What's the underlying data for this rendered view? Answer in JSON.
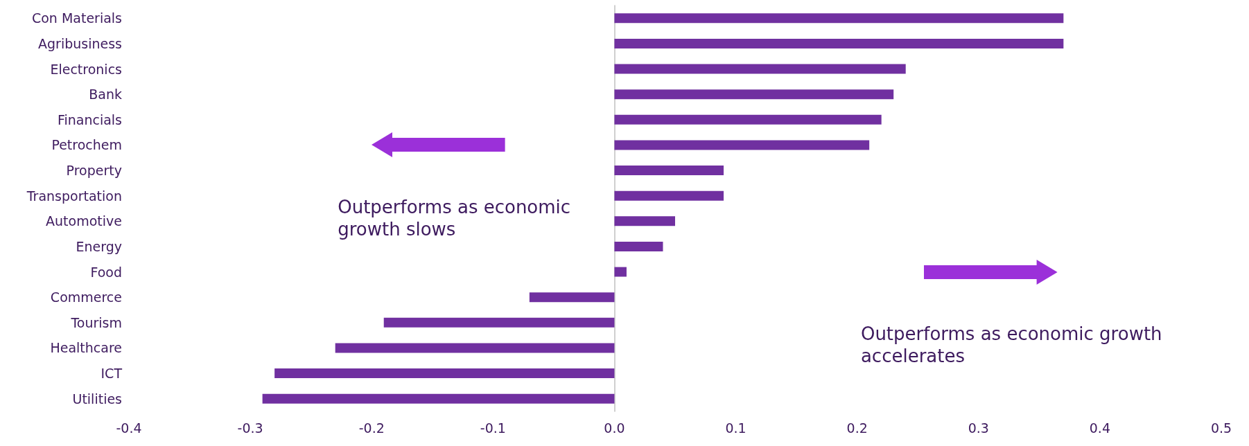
{
  "chart_data": {
    "type": "bar",
    "orientation": "horizontal",
    "categories": [
      "Con Materials",
      "Agribusiness",
      "Electronics",
      "Bank",
      "Financials",
      "Petrochem",
      "Property",
      "Transportation",
      "Automotive",
      "Energy",
      "Food",
      "Commerce",
      "Tourism",
      "Healthcare",
      "ICT",
      "Utilities"
    ],
    "values": [
      0.37,
      0.37,
      0.24,
      0.23,
      0.22,
      0.21,
      0.09,
      0.09,
      0.05,
      0.04,
      0.01,
      -0.07,
      -0.19,
      -0.23,
      -0.28,
      -0.29
    ],
    "color": "#7030a0",
    "xlim": [
      -0.4,
      0.5
    ],
    "xticks": [
      -0.4,
      -0.3,
      -0.2,
      -0.1,
      {
        "value": 0,
        "label": "0.0"
      },
      0.1,
      0.2,
      0.3,
      0.4,
      0.5
    ],
    "annotations": [
      "Outperforms as economic\ngrowth slows",
      "Outperforms as economic growth\naccelerates"
    ]
  }
}
